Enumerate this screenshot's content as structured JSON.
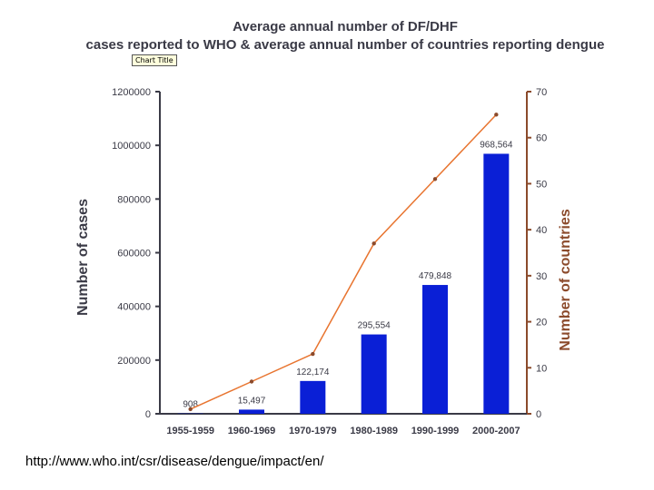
{
  "chart_data": {
    "type": "bar",
    "title_lines": [
      "Average annual number of DF/DHF",
      "cases reported to WHO & average annual number of countries reporting dengue"
    ],
    "tooltip": "Chart Title",
    "categories": [
      "1955-1959",
      "1960-1969",
      "1970-1979",
      "1980-1989",
      "1990-1999",
      "2000-2007"
    ],
    "series": [
      {
        "type": "bar",
        "axis": "left",
        "values": [
          908,
          15497,
          122174,
          295554,
          479848,
          968564
        ],
        "data_labels": [
          "908",
          "15,497",
          "122,174",
          "295,554",
          "479,848",
          "968,564"
        ]
      },
      {
        "type": "line",
        "axis": "right",
        "values": [
          1,
          7,
          13,
          37,
          51,
          65
        ]
      }
    ],
    "ylabel_left": "Number of cases",
    "ylabel_right": "Number of countries",
    "ylim_left": [
      0,
      1200000
    ],
    "yticks_left": [
      {
        "value": 0,
        "label": "0"
      },
      {
        "value": 200000,
        "label": "200000"
      },
      {
        "value": 400000,
        "label": "400000"
      },
      {
        "value": 600000,
        "label": "600000"
      },
      {
        "value": 800000,
        "label": "800000"
      },
      {
        "value": 1000000,
        "label": "1000000"
      },
      {
        "value": 1200000,
        "label": "1200000"
      }
    ],
    "ylim_right": [
      0,
      70
    ],
    "yticks_right": [
      {
        "value": 0,
        "label": "0"
      },
      {
        "value": 10,
        "label": "10"
      },
      {
        "value": 20,
        "label": "20"
      },
      {
        "value": 30,
        "label": "30"
      },
      {
        "value": 40,
        "label": "40"
      },
      {
        "value": 50,
        "label": "50"
      },
      {
        "value": 60,
        "label": "60"
      },
      {
        "value": 70,
        "label": "70"
      }
    ],
    "grid": false,
    "colors": {
      "bar": "#0a1fd6",
      "line": "#e8742f",
      "left_axis": "#3a3a46",
      "right_axis": "#8b4a2b",
      "title": "#3a3a46"
    }
  },
  "footer": {
    "source_url": "http://www.who.int/csr/disease/dengue/impact/en/"
  }
}
